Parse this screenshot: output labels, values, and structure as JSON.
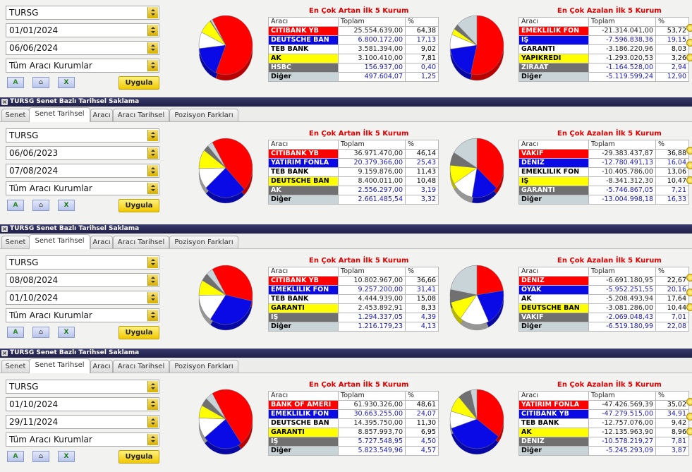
{
  "panels": [
    {
      "symbol": "TURSG",
      "date_from": "01/01/2024",
      "date_to": "06/06/2024",
      "institution": "Tüm Aracı Kurumlar",
      "apply": "Uygula",
      "up_title": "En Çok Artan İlk 5 Kurum",
      "down_title": "En Çok Azalan İlk 5 Kurum",
      "headers": [
        "Aracı",
        "Toplam",
        "%"
      ],
      "up": [
        {
          "name": "CITIBANK YB",
          "total": "25.554.639,00",
          "pct": "64,38",
          "color": "red"
        },
        {
          "name": "DEUTSCHE BAN",
          "total": "6.800.172,00",
          "pct": "17,13",
          "color": "blue"
        },
        {
          "name": "TEB BANK",
          "total": "3.581.394,00",
          "pct": "9,02",
          "color": "white"
        },
        {
          "name": "AK",
          "total": "3.100.410,00",
          "pct": "7,81",
          "color": "yellow"
        },
        {
          "name": "HSBC",
          "total": "156.937,00",
          "pct": "0,40",
          "color": "dgray"
        },
        {
          "name": "Diğer",
          "total": "497.604,07",
          "pct": "1,25",
          "color": "lgray"
        }
      ],
      "down": [
        {
          "name": "EMEKLILIK FON",
          "total": "-21.314.041,00",
          "pct": "53,72",
          "color": "red"
        },
        {
          "name": "İŞ",
          "total": "-7.596.838,36",
          "pct": "19,15",
          "color": "blue"
        },
        {
          "name": "GARANTİ",
          "total": "-3.186.220,96",
          "pct": "8,03",
          "color": "white"
        },
        {
          "name": "YAPIKREDİ",
          "total": "-1.293.020,53",
          "pct": "3,26",
          "color": "yellow"
        },
        {
          "name": "ZİRAAT",
          "total": "-1.164.528,00",
          "pct": "2,94",
          "color": "dgray"
        },
        {
          "name": "Diğer",
          "total": "-5.119.599,24",
          "pct": "12,90",
          "color": "lgray"
        }
      ]
    },
    {
      "title": "TURSG Senet Bazlı Tarihsel Saklama",
      "tabs": [
        "Senet",
        "Senet Tarihsel",
        "Aracı",
        "Aracı Tarihsel",
        "Pozisyon Farkları"
      ],
      "symbol": "TURSG",
      "date_from": "06/06/2023",
      "date_to": "07/08/2024",
      "institution": "Tüm Aracı Kurumlar",
      "apply": "Uygula",
      "up_title": "En Çok Artan İlk 5 Kurum",
      "down_title": "En Çok Azalan İlk 5 Kurum",
      "headers": [
        "Aracı",
        "Toplam",
        "%"
      ],
      "up": [
        {
          "name": "CITIBANK YB",
          "total": "36.971.470,00",
          "pct": "46,14",
          "color": "red"
        },
        {
          "name": "YATIRIM FONLA",
          "total": "20.379.366,00",
          "pct": "25,43",
          "color": "blue"
        },
        {
          "name": "TEB BANK",
          "total": "9.159.876,00",
          "pct": "11,43",
          "color": "white"
        },
        {
          "name": "DEUTSCHE BAN",
          "total": "8.400.011,00",
          "pct": "10,48",
          "color": "yellow"
        },
        {
          "name": "AK",
          "total": "2.556.297,00",
          "pct": "3,19",
          "color": "dgray"
        },
        {
          "name": "Diğer",
          "total": "2.661.485,54",
          "pct": "3,32",
          "color": "lgray"
        }
      ],
      "down": [
        {
          "name": "VAKIF",
          "total": "-29.383.437,87",
          "pct": "36,88",
          "color": "red"
        },
        {
          "name": "DENİZ",
          "total": "-12.780.491,13",
          "pct": "16,04",
          "color": "blue"
        },
        {
          "name": "EMEKLILIK FON",
          "total": "-10.405.786,00",
          "pct": "13,06",
          "color": "white"
        },
        {
          "name": "İŞ",
          "total": "-8.341.312,30",
          "pct": "10,47",
          "color": "yellow"
        },
        {
          "name": "GARANTİ",
          "total": "-5.746.867,05",
          "pct": "7,21",
          "color": "dgray"
        },
        {
          "name": "Diğer",
          "total": "-13.004.998,18",
          "pct": "16,33",
          "color": "lgray"
        }
      ]
    },
    {
      "title": "TURSG Senet Bazlı Tarihsel Saklama",
      "tabs": [
        "Senet",
        "Senet Tarihsel",
        "Aracı",
        "Aracı Tarihsel",
        "Pozisyon Farkları"
      ],
      "symbol": "TURSG",
      "date_from": "08/08/2024",
      "date_to": "01/10/2024",
      "institution": "Tüm Aracı Kurumlar",
      "apply": "Uygula",
      "up_title": "En Çok Artan İlk 5 Kurum",
      "down_title": "En Çok Azalan İlk 5 Kurum",
      "headers": [
        "Aracı",
        "Toplam",
        "%"
      ],
      "up": [
        {
          "name": "CITIBANK YB",
          "total": "10.802.967,00",
          "pct": "36,66",
          "color": "red"
        },
        {
          "name": "EMEKLILIK FON",
          "total": "9.257.200,00",
          "pct": "31,41",
          "color": "blue"
        },
        {
          "name": "TEB BANK",
          "total": "4.444.939,00",
          "pct": "15,08",
          "color": "white"
        },
        {
          "name": "GARANTİ",
          "total": "2.453.892,91",
          "pct": "8,33",
          "color": "yellow"
        },
        {
          "name": "İŞ",
          "total": "1.294.337,05",
          "pct": "4,39",
          "color": "dgray"
        },
        {
          "name": "Diğer",
          "total": "1.216.179,23",
          "pct": "4,13",
          "color": "lgray"
        }
      ],
      "down": [
        {
          "name": "DENİZ",
          "total": "-6.691.180,95",
          "pct": "22,67",
          "color": "red"
        },
        {
          "name": "OYAK",
          "total": "-5.952.251,55",
          "pct": "20,16",
          "color": "blue"
        },
        {
          "name": "AK",
          "total": "-5.208.493,94",
          "pct": "17,64",
          "color": "white"
        },
        {
          "name": "DEUTSCHE BAN",
          "total": "-3.081.286,00",
          "pct": "10,44",
          "color": "yellow"
        },
        {
          "name": "VAKIF",
          "total": "-2.069.048,43",
          "pct": "7,01",
          "color": "dgray"
        },
        {
          "name": "Diğer",
          "total": "-6.519.180,99",
          "pct": "22,08",
          "color": "lgray"
        }
      ]
    },
    {
      "title": "TURSG Senet Bazlı Tarihsel Saklama",
      "tabs": [
        "Senet",
        "Senet Tarihsel",
        "Aracı",
        "Aracı Tarihsel",
        "Pozisyon Farkları"
      ],
      "symbol": "TURSG",
      "date_from": "01/10/2024",
      "date_to": "29/11/2024",
      "institution": "Tüm Aracı Kurumlar",
      "apply": "Uygula",
      "up_title": "En Çok Artan İlk 5 Kurum",
      "down_title": "En Çok Azalan İlk 5 Kurum",
      "headers": [
        "Aracı",
        "Toplam",
        "%"
      ],
      "up": [
        {
          "name": "BANK OF AMERI",
          "total": "61.930.326,00",
          "pct": "48,61",
          "color": "red"
        },
        {
          "name": "EMEKLILIK FON",
          "total": "30.663.255,00",
          "pct": "24,07",
          "color": "blue"
        },
        {
          "name": "DEUTSCHE BAN",
          "total": "14.395.750,00",
          "pct": "11,30",
          "color": "white"
        },
        {
          "name": "GARANTİ",
          "total": "8.857.993,70",
          "pct": "6,95",
          "color": "yellow"
        },
        {
          "name": "İŞ",
          "total": "5.727.548,95",
          "pct": "4,50",
          "color": "dgray"
        },
        {
          "name": "Diğer",
          "total": "5.823.549,96",
          "pct": "4,57",
          "color": "lgray"
        }
      ],
      "down": [
        {
          "name": "YATIRIM FONLA",
          "total": "-47.426.569,39",
          "pct": "35,02",
          "color": "red"
        },
        {
          "name": "CITIBANK YB",
          "total": "-47.279.515,00",
          "pct": "34,91",
          "color": "blue"
        },
        {
          "name": "TEB BANK",
          "total": "-12.757.076,00",
          "pct": "9,42",
          "color": "white"
        },
        {
          "name": "AK",
          "total": "-12.135.963,90",
          "pct": "8,96",
          "color": "yellow"
        },
        {
          "name": "DENİZ",
          "total": "-10.578.219,27",
          "pct": "7,81",
          "color": "dgray"
        },
        {
          "name": "Diğer",
          "total": "-5.245.293,09",
          "pct": "3,87",
          "color": "lgray"
        }
      ]
    }
  ],
  "colors": {
    "red": "#ff0000",
    "blue": "#0a0ae6",
    "white": "#ffffff",
    "yellow": "#ffff00",
    "dgray": "#707070",
    "lgray": "#c8d4d8"
  }
}
